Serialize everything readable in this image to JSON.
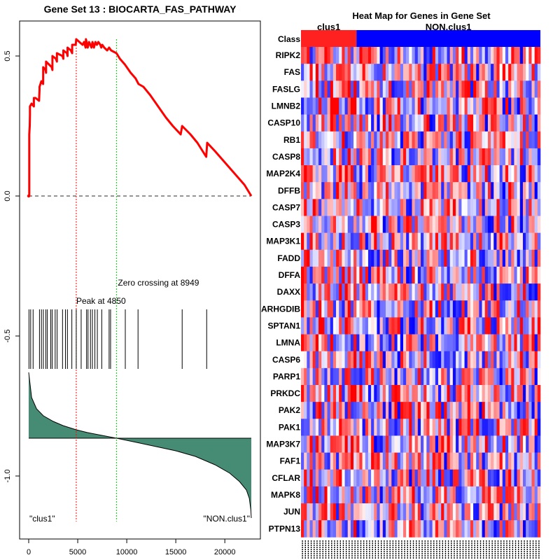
{
  "chart_data": [
    {
      "type": "line",
      "title": "Gene Set  13 : BIOCARTA_FAS_PATHWAY",
      "xlabel": "",
      "ylabel": "",
      "xlim": [
        0,
        22700
      ],
      "ylim": [
        -1.15,
        0.6
      ],
      "x_ticks": [
        0,
        5000,
        10000,
        15000,
        20000
      ],
      "x_tick_labels": [
        "0",
        "5000",
        "10000",
        "15000",
        "20000"
      ],
      "y_ticks": [
        0.5,
        0.0,
        -0.5,
        -1.0
      ],
      "y_tick_labels": [
        "0.5",
        "0.0",
        "-0.5",
        "-1.0"
      ],
      "series": [
        {
          "name": "running enrichment score",
          "color": "#ff0000",
          "x": [
            0,
            60,
            60,
            110,
            130,
            130,
            290,
            530,
            530,
            700,
            1060,
            1110,
            1110,
            1290,
            1470,
            1480,
            1480,
            1720,
            1770,
            1770,
            2060,
            2350,
            2420,
            2420,
            2780,
            2880,
            2880,
            3450,
            3530,
            3530,
            3900,
            3960,
            3960,
            4300,
            4430,
            4430,
            4800,
            4850,
            5170,
            5500,
            5640,
            5800,
            5840,
            5900,
            6020,
            6150,
            6280,
            6400,
            6500,
            6650,
            6800,
            6950,
            7100,
            7300,
            7400,
            7500,
            7700,
            8000,
            8200,
            8400,
            8949,
            9300,
            9800,
            10400,
            10900,
            11200,
            11700,
            12400,
            13200,
            14000,
            14700,
            15500,
            15650,
            16500,
            17200,
            18100,
            18200,
            19000,
            20000,
            21000,
            22000,
            22700
          ],
          "y": [
            0.0,
            0.0,
            0.22,
            0.25,
            0.29,
            0.32,
            0.33,
            0.32,
            0.35,
            0.35,
            0.34,
            0.38,
            0.39,
            0.41,
            0.4,
            0.44,
            0.46,
            0.45,
            0.44,
            0.48,
            0.47,
            0.46,
            0.45,
            0.5,
            0.49,
            0.48,
            0.51,
            0.5,
            0.49,
            0.52,
            0.51,
            0.5,
            0.53,
            0.52,
            0.51,
            0.54,
            0.54,
            0.56,
            0.55,
            0.54,
            0.55,
            0.53,
            0.56,
            0.55,
            0.53,
            0.55,
            0.54,
            0.53,
            0.55,
            0.53,
            0.55,
            0.54,
            0.55,
            0.54,
            0.53,
            0.54,
            0.53,
            0.52,
            0.53,
            0.52,
            0.51,
            0.49,
            0.47,
            0.44,
            0.42,
            0.4,
            0.39,
            0.36,
            0.32,
            0.28,
            0.25,
            0.22,
            0.25,
            0.22,
            0.19,
            0.14,
            0.19,
            0.16,
            0.12,
            0.08,
            0.04,
            0.0
          ]
        }
      ],
      "annotations": [
        {
          "text": "Peak at 4850",
          "x": 4850
        },
        {
          "text": "Zero crossing at 8949",
          "x": 8949
        },
        {
          "text": "\"clus1\"",
          "position": "bottom-left"
        },
        {
          "text": "\"NON.clus1\"",
          "position": "bottom-right"
        }
      ],
      "peak_line": {
        "x": 4850,
        "color": "#ff0000",
        "style": "dotted"
      },
      "zero_crossing_line": {
        "x": 8949,
        "color": "#00cc00",
        "style": "dotted"
      },
      "hit_positions": [
        30,
        200,
        450,
        1100,
        1300,
        1500,
        1750,
        1900,
        2250,
        2400,
        2700,
        2900,
        3450,
        3750,
        3950,
        4400,
        4850,
        5350,
        5900,
        6050,
        6300,
        6500,
        6750,
        7000,
        7450,
        8200,
        8350,
        9850,
        11150,
        15650,
        18150
      ],
      "ranked_metric": {
        "name": "ranked list metric",
        "fill_color": "#468c74",
        "baseline": -0.865,
        "x": [
          0,
          300,
          800,
          1500,
          2500,
          3500,
          4850,
          6000,
          8949,
          11000,
          13000,
          15000,
          17000,
          19000,
          20500,
          21500,
          22200,
          22500,
          22650,
          22700
        ],
        "y": [
          -0.63,
          -0.72,
          -0.76,
          -0.785,
          -0.805,
          -0.82,
          -0.835,
          -0.845,
          -0.865,
          -0.88,
          -0.895,
          -0.91,
          -0.93,
          -0.96,
          -0.99,
          -1.02,
          -1.05,
          -1.08,
          -1.12,
          -1.15
        ]
      }
    },
    {
      "type": "heatmap",
      "title": "Heat Map for Genes in Gene Set",
      "class_row_label": "Class",
      "class_groups": [
        {
          "name": "clus1",
          "color": "#ff2020",
          "count": 19
        },
        {
          "name": "NON.clus1",
          "color": "#0000ff",
          "count": 63
        }
      ],
      "genes": [
        "RIPK2",
        "FAS",
        "FASLG",
        "LMNB2",
        "CASP10",
        "RB1",
        "CASP8",
        "MAP2K4",
        "DFFB",
        "CASP7",
        "CASP3",
        "MAP3K1",
        "FADD",
        "DFFA",
        "DAXX",
        "ARHGDIB",
        "SPTAN1",
        "LMNA",
        "CASP6",
        "PARP1",
        "PRKDC",
        "PAK2",
        "PAK1",
        "MAP3K7",
        "FAF1",
        "CFLAR",
        "MAPK8",
        "JUN",
        "PTPN13"
      ],
      "n_samples": 82,
      "color_scale": {
        "low": "#0000ff",
        "mid": "#ffffff",
        "high": "#ff0000"
      }
    }
  ]
}
